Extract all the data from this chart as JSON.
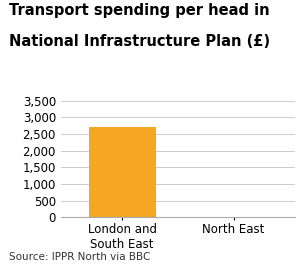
{
  "title_line1": "Transport spending per head in",
  "title_line2": "National Infrastructure Plan (£)",
  "categories": [
    "London and\nSouth East",
    "North East"
  ],
  "values": [
    2700,
    0
  ],
  "bar_color": "#F5A623",
  "ylim": [
    0,
    3500
  ],
  "yticks": [
    0,
    500,
    1000,
    1500,
    2000,
    2500,
    3000,
    3500
  ],
  "source_text": "Source: IPPR North via BBC",
  "background_color": "#ffffff",
  "title_fontsize": 10.5,
  "tick_fontsize": 8.5,
  "source_fontsize": 7.5,
  "grid_color": "#cccccc",
  "bottom_spine_color": "#aaaaaa"
}
